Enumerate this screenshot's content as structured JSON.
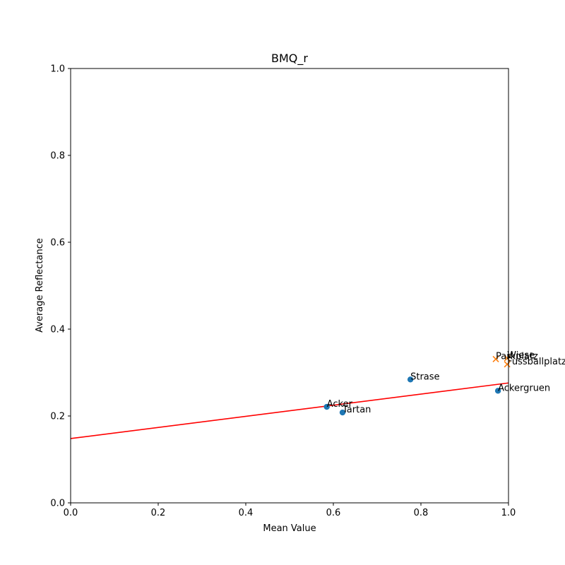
{
  "chart_data": {
    "type": "scatter",
    "title": "BMQ_r",
    "xlabel": "Mean Value",
    "ylabel": "Average Reflectance",
    "xlim": [
      0,
      1
    ],
    "ylim": [
      0,
      1
    ],
    "xticks": [
      "0.0",
      "0.2",
      "0.4",
      "0.6",
      "0.8",
      "1.0"
    ],
    "yticks": [
      "0.0",
      "0.2",
      "0.4",
      "0.6",
      "0.8",
      "1.0"
    ],
    "grid": false,
    "series": [
      {
        "marker": "circle",
        "color": "#1f77b4",
        "points": [
          {
            "label": "Acker",
            "x": 0.585,
            "y": 0.221
          },
          {
            "label": "Tartan",
            "x": 0.621,
            "y": 0.208
          },
          {
            "label": "Strase",
            "x": 0.776,
            "y": 0.284
          },
          {
            "label": "Ackergruen",
            "x": 0.976,
            "y": 0.258
          }
        ]
      },
      {
        "marker": "x",
        "color": "#ff7f0e",
        "points": [
          {
            "label": "Parkplatz",
            "x": 0.971,
            "y": 0.331
          },
          {
            "label": "Wiese",
            "x": 0.997,
            "y": 0.333
          },
          {
            "label": "Fussballplatz",
            "x": 0.997,
            "y": 0.319
          }
        ]
      }
    ],
    "fit_line": {
      "color": "#ff0000",
      "x": [
        0,
        1
      ],
      "y": [
        0.148,
        0.276
      ]
    }
  }
}
